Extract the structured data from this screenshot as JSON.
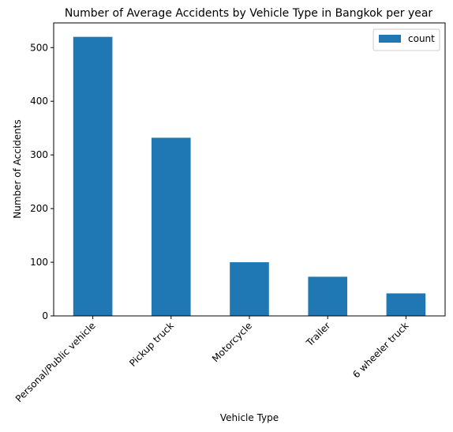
{
  "chart_data": {
    "type": "bar",
    "title": "Number of Average Accidents by Vehicle Type in Bangkok per year",
    "xlabel": "Vehicle Type",
    "ylabel": "Number of Accidents",
    "categories": [
      "Personal/Public vehicle",
      "Pickup truck",
      "Motorcycle",
      "Trailer",
      "6 wheeler truck"
    ],
    "series": [
      {
        "name": "count",
        "values": [
          520,
          332,
          100,
          73,
          42
        ],
        "color": "#1f77b4"
      }
    ],
    "ylim": [
      0,
      546
    ],
    "yticks": [
      0,
      100,
      200,
      300,
      400,
      500
    ],
    "grid": false,
    "legend_position": "top-right"
  }
}
